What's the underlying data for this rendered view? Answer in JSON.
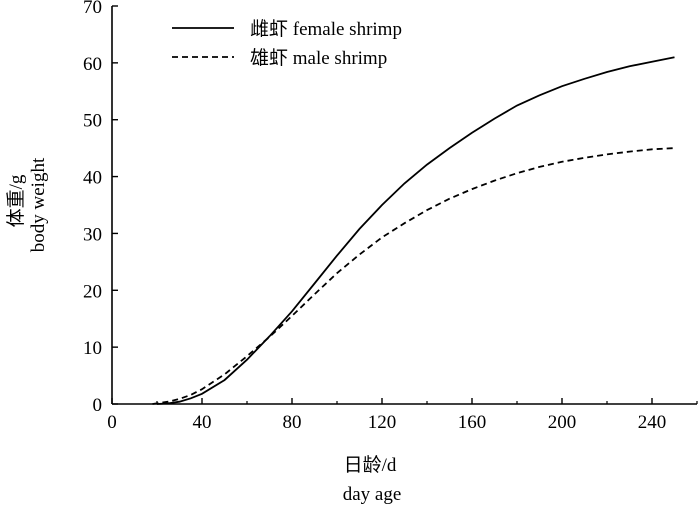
{
  "chart_data": {
    "type": "line",
    "xlabel_line1": "日龄/d",
    "xlabel_line2": "day age",
    "ylabel_line1": "体重/g",
    "ylabel_line2": "body weight",
    "xlim": [
      0,
      260
    ],
    "ylim": [
      0,
      70
    ],
    "xticks": [
      0,
      40,
      80,
      120,
      160,
      200,
      240
    ],
    "yticks": [
      0,
      10,
      20,
      30,
      40,
      50,
      60,
      70
    ],
    "grid": false,
    "legend_position": "top-left",
    "series": [
      {
        "name": "雌虾 female shrimp",
        "style": "solid",
        "color": "#000000",
        "x": [
          20,
          25,
          30,
          35,
          40,
          50,
          60,
          70,
          80,
          90,
          100,
          110,
          120,
          130,
          140,
          150,
          160,
          170,
          180,
          190,
          200,
          210,
          220,
          230,
          240,
          250
        ],
        "y": [
          0,
          0.1,
          0.4,
          1.0,
          1.8,
          4.2,
          7.8,
          11.9,
          16.3,
          21.2,
          26.1,
          30.8,
          35.0,
          38.8,
          42.1,
          45.0,
          47.7,
          50.2,
          52.5,
          54.3,
          55.9,
          57.2,
          58.4,
          59.4,
          60.2,
          61.0
        ]
      },
      {
        "name": "雄虾 male shrimp",
        "style": "dashed",
        "color": "#000000",
        "x": [
          18,
          25,
          30,
          35,
          40,
          50,
          60,
          70,
          80,
          90,
          100,
          110,
          120,
          130,
          140,
          150,
          160,
          170,
          180,
          190,
          200,
          210,
          220,
          230,
          240,
          250
        ],
        "y": [
          0,
          0.4,
          0.9,
          1.6,
          2.6,
          5.2,
          8.4,
          11.8,
          15.5,
          19.3,
          23.0,
          26.3,
          29.3,
          31.8,
          34.1,
          36.1,
          37.8,
          39.3,
          40.6,
          41.7,
          42.6,
          43.3,
          43.9,
          44.4,
          44.8,
          45.0
        ]
      }
    ]
  }
}
